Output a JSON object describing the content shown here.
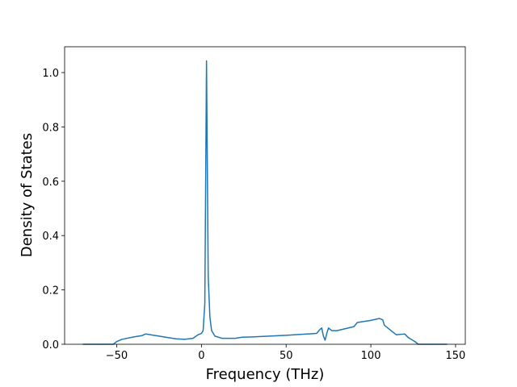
{
  "chart_data": {
    "type": "line",
    "xlabel": "Frequency (THz)",
    "ylabel": "Density of States",
    "x": [
      -70,
      -52,
      -50,
      -47,
      -40,
      -35,
      -33,
      -30,
      -25,
      -20,
      -15,
      -10,
      -5,
      -2,
      0,
      1,
      2,
      3,
      4,
      5,
      6,
      8,
      12,
      20,
      24,
      30,
      50,
      68,
      70,
      71,
      72,
      73,
      74,
      75,
      77,
      80,
      90,
      92,
      100,
      105,
      107,
      108,
      112,
      115,
      120,
      122,
      126,
      128,
      145
    ],
    "series": [
      {
        "color": "#1f77b4",
        "values": [
          0,
          0,
          0.01,
          0.018,
          0.027,
          0.032,
          0.038,
          0.035,
          0.03,
          0.025,
          0.02,
          0.018,
          0.022,
          0.035,
          0.04,
          0.05,
          0.15,
          1.043,
          0.25,
          0.1,
          0.05,
          0.03,
          0.022,
          0.022,
          0.026,
          0.027,
          0.033,
          0.04,
          0.055,
          0.06,
          0.03,
          0.015,
          0.04,
          0.06,
          0.05,
          0.05,
          0.065,
          0.08,
          0.088,
          0.095,
          0.09,
          0.07,
          0.05,
          0.035,
          0.038,
          0.025,
          0.01,
          0,
          0
        ]
      }
    ],
    "xlim": [
      -80.75,
      155.75
    ],
    "xticks": [
      {
        "value": -50,
        "label": "−50"
      },
      0,
      50,
      100,
      150
    ],
    "ylim": [
      0,
      1.095
    ],
    "yticks": [
      {
        "value": 0,
        "label": "0.0"
      },
      0.2,
      0.4,
      0.6,
      0.8,
      {
        "value": 1,
        "label": "1.0"
      }
    ]
  }
}
